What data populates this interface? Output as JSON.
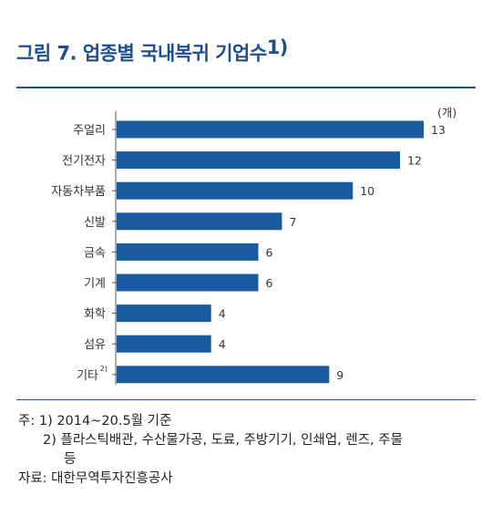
{
  "title": {
    "text": "그림 7. 업종별 국내복귀 기업수",
    "superscript": "1)"
  },
  "chart_data": {
    "type": "bar",
    "orientation": "horizontal",
    "unit_label": "(개)",
    "categories": [
      "주얼리",
      "전기전자",
      "자동차부품",
      "신발",
      "금속",
      "기계",
      "화학",
      "섬유",
      "기타"
    ],
    "category_notes": {
      "기타": "2)"
    },
    "values": [
      13,
      12,
      10,
      7,
      6,
      6,
      4,
      4,
      9
    ],
    "xlim": [
      0,
      13
    ],
    "bar_color": "#1b5aa0",
    "grid": false
  },
  "notes": {
    "prefix": "주:",
    "note1": "1) 2014~20.5월 기준",
    "note2_line1": "2) 플라스틱배관, 수산물가공, 도료, 주방기기, 인쇄업, 렌즈, 주물",
    "note2_line2": "등",
    "source": "자료: 대한무역투자진흥공사"
  }
}
